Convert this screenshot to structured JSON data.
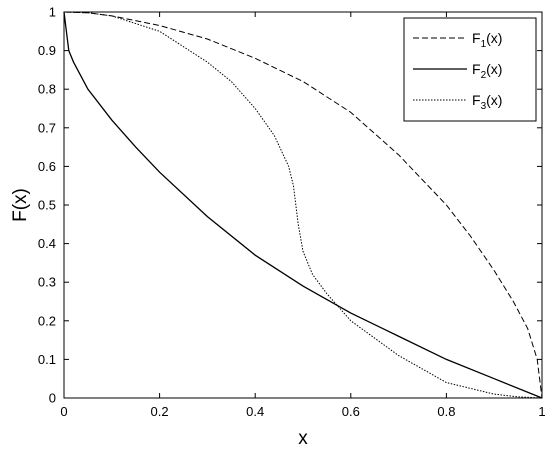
{
  "chart_data": {
    "type": "line",
    "xlabel": "x",
    "ylabel": "F(x)",
    "xlim": [
      0,
      1
    ],
    "ylim": [
      0,
      1
    ],
    "xticks": [
      "0",
      "0.2",
      "0.4",
      "0.6",
      "0.8",
      "1"
    ],
    "yticks": [
      "0",
      "0.1",
      "0.2",
      "0.3",
      "0.4",
      "0.5",
      "0.6",
      "0.7",
      "0.8",
      "0.9",
      "1"
    ],
    "grid": false,
    "legend_position": "top-right",
    "series": [
      {
        "name": "F",
        "subscript": "1",
        "suffix": "(x)",
        "style": "dashed",
        "x": [
          0,
          0.05,
          0.1,
          0.2,
          0.3,
          0.4,
          0.5,
          0.6,
          0.7,
          0.8,
          0.85,
          0.9,
          0.94,
          0.97,
          0.99,
          1.0
        ],
        "y": [
          1.0,
          0.998,
          0.99,
          0.965,
          0.93,
          0.88,
          0.82,
          0.74,
          0.63,
          0.5,
          0.42,
          0.33,
          0.25,
          0.18,
          0.1,
          0.0
        ]
      },
      {
        "name": "F",
        "subscript": "2",
        "suffix": "(x)",
        "style": "solid",
        "x": [
          0,
          0.005,
          0.01,
          0.02,
          0.05,
          0.1,
          0.15,
          0.2,
          0.3,
          0.4,
          0.5,
          0.6,
          0.7,
          0.8,
          0.9,
          1.0
        ],
        "y": [
          1.0,
          0.95,
          0.9,
          0.87,
          0.8,
          0.72,
          0.65,
          0.585,
          0.47,
          0.37,
          0.29,
          0.22,
          0.16,
          0.1,
          0.05,
          0.0
        ]
      },
      {
        "name": "F",
        "subscript": "3",
        "suffix": "(x)",
        "style": "dotted",
        "x": [
          0,
          0.05,
          0.1,
          0.2,
          0.3,
          0.35,
          0.4,
          0.44,
          0.47,
          0.48,
          0.49,
          0.5,
          0.52,
          0.55,
          0.6,
          0.7,
          0.8,
          0.9,
          0.95,
          1.0
        ],
        "y": [
          1.0,
          0.998,
          0.99,
          0.95,
          0.87,
          0.82,
          0.75,
          0.68,
          0.6,
          0.55,
          0.45,
          0.38,
          0.32,
          0.27,
          0.2,
          0.11,
          0.04,
          0.01,
          0.003,
          0.0
        ]
      }
    ]
  }
}
